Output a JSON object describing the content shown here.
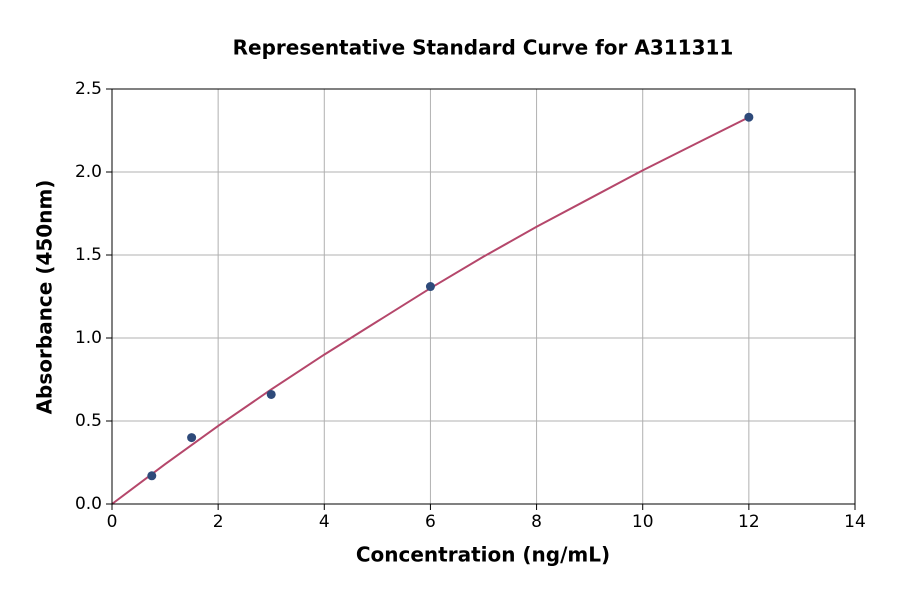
{
  "chart_data": {
    "type": "scatter",
    "title": "Representative Standard Curve for A311311",
    "x_label": "Concentration (ng/mL)",
    "y_label": "Absorbance (450nm)",
    "xlim": [
      0,
      14
    ],
    "xticks": [
      0,
      2,
      4,
      6,
      8,
      10,
      12,
      14
    ],
    "ylim": [
      0,
      2.5
    ],
    "yticks": [
      {
        "value": 0,
        "label": "0.0"
      },
      0.5,
      {
        "value": 1,
        "label": "1.0"
      },
      1.5,
      {
        "value": 2,
        "label": "2.0"
      },
      2.5
    ],
    "grid": true,
    "series": [
      {
        "type": "line",
        "color": "#b5476b",
        "x": [
          0,
          1,
          2,
          3,
          4,
          5,
          6,
          7,
          8,
          9,
          10,
          11,
          12
        ],
        "values": [
          0,
          0.24,
          0.47,
          0.69,
          0.9,
          1.1,
          1.3,
          1.49,
          1.67,
          1.84,
          2.01,
          2.17,
          2.33
        ]
      },
      {
        "type": "scatter",
        "color": "#2e4a7a",
        "x": [
          0.75,
          1.5,
          3,
          6,
          12
        ],
        "values": [
          0.17,
          0.4,
          0.66,
          1.31,
          2.33
        ]
      }
    ]
  }
}
